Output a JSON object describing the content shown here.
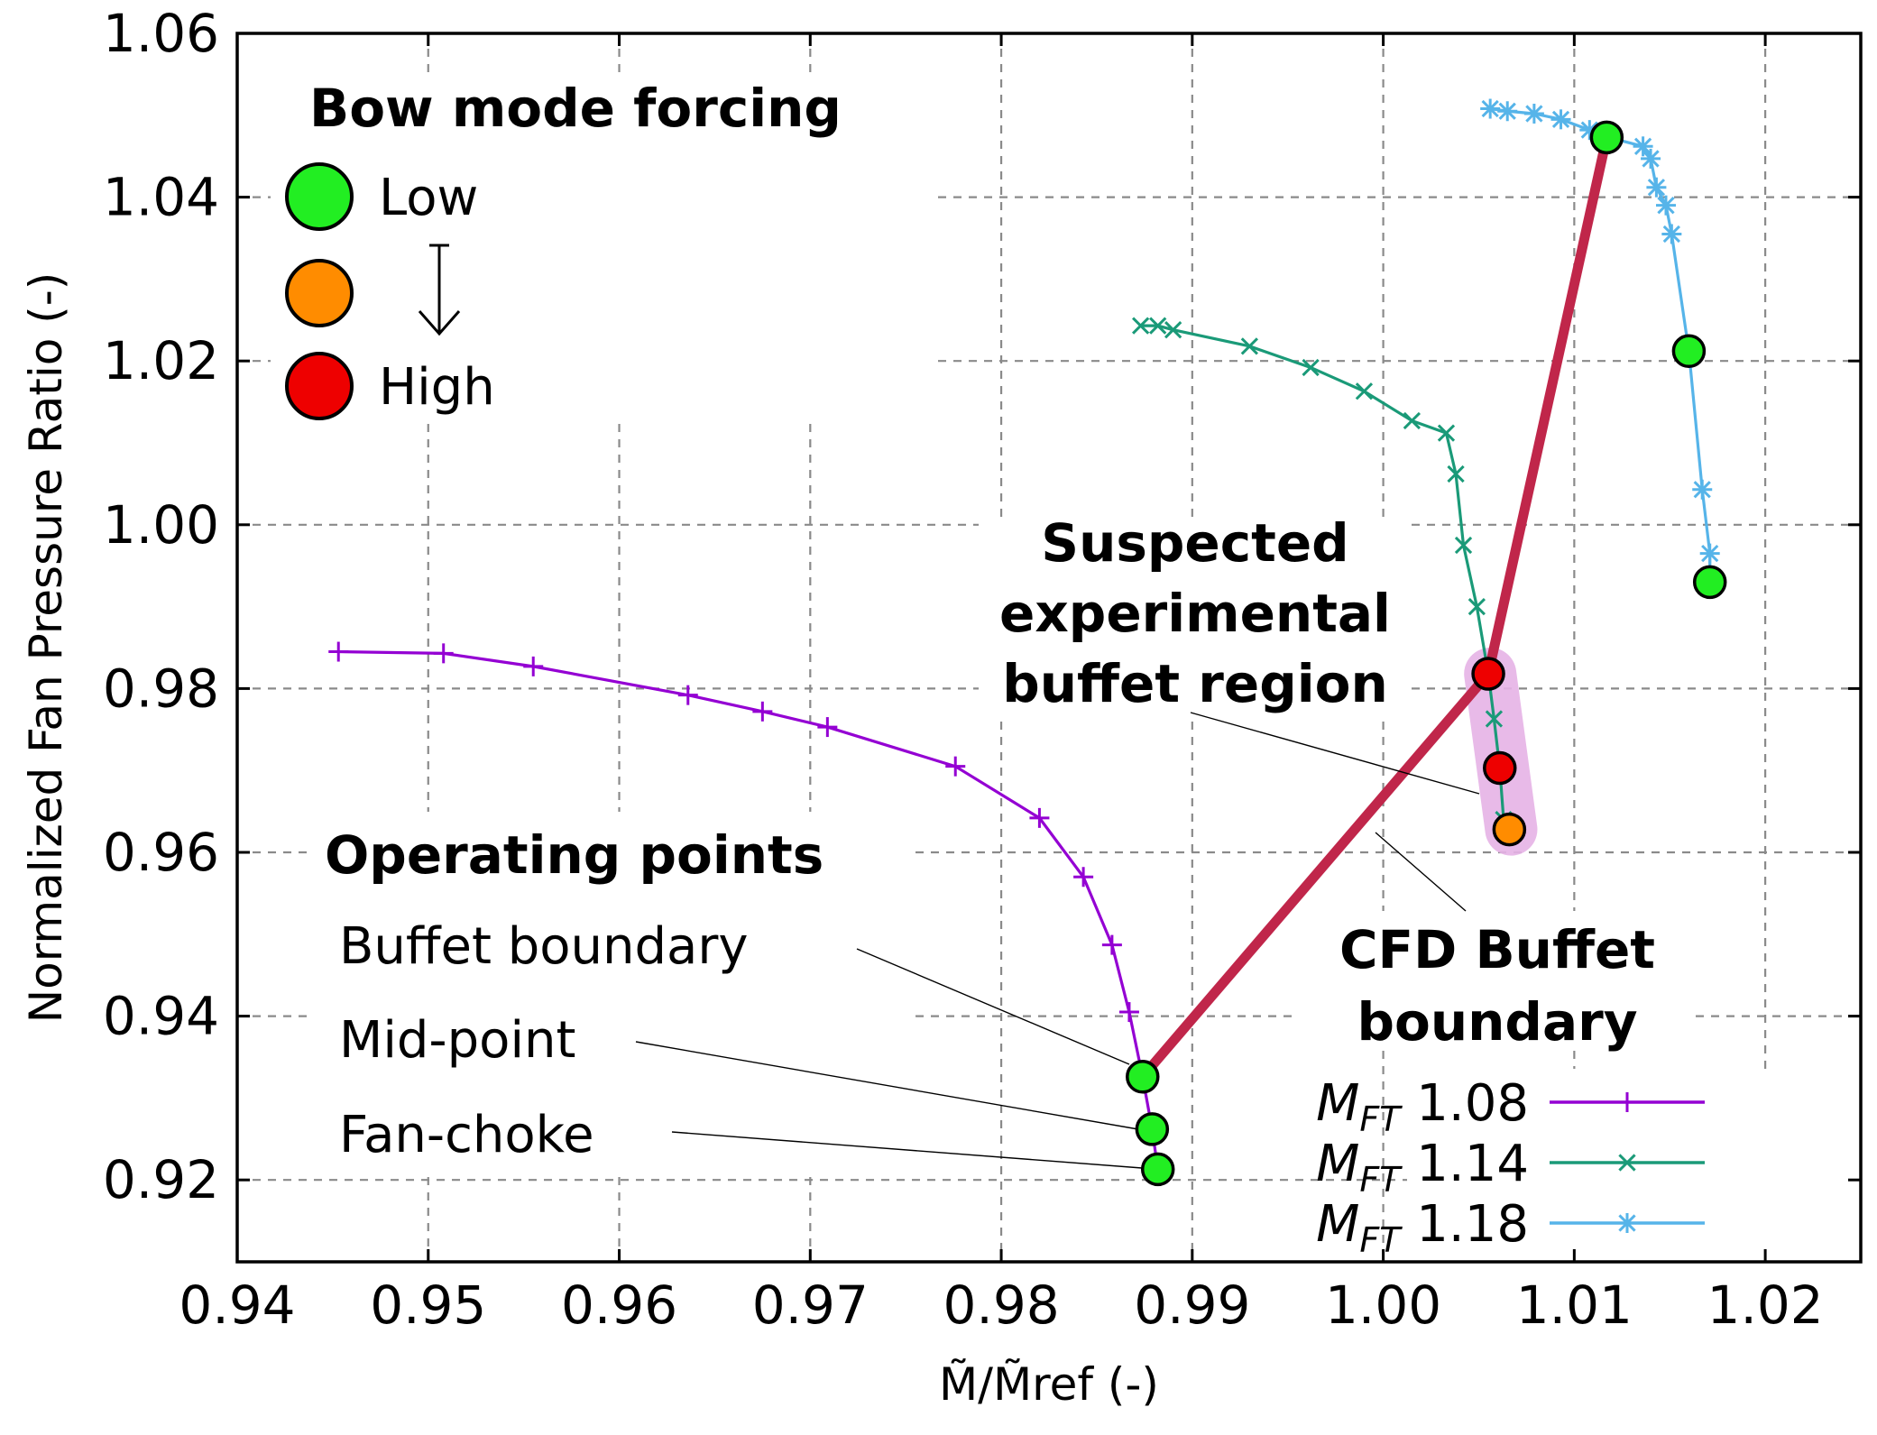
{
  "chart_data": {
    "type": "line",
    "xlabel": "M̃/M̃ref (-)",
    "ylabel": "Normalized Fan Pressure Ratio (-)",
    "xlim": [
      0.94,
      1.025
    ],
    "ylim": [
      0.91,
      1.06
    ],
    "x_ticks": [
      "0.94",
      "0.95",
      "0.96",
      "0.97",
      "0.98",
      "0.99",
      "1.00",
      "1.01",
      "1.02"
    ],
    "y_ticks": [
      "0.92",
      "0.94",
      "0.96",
      "0.98",
      "1.00",
      "1.02",
      "1.04",
      "1.06"
    ],
    "grid": true,
    "legend_position": "bottom-right",
    "series": [
      {
        "name": "MFT 1.08",
        "name_main": "M",
        "name_sub": "FT",
        "name_value": "1.08",
        "color": "#9400d3",
        "marker": "plus",
        "points": [
          [
            0.9453,
            0.9845
          ],
          [
            0.9508,
            0.9843
          ],
          [
            0.9555,
            0.9827
          ],
          [
            0.9636,
            0.9792
          ],
          [
            0.9675,
            0.9772
          ],
          [
            0.9709,
            0.9753
          ],
          [
            0.9776,
            0.9705
          ],
          [
            0.982,
            0.9642
          ],
          [
            0.9843,
            0.957
          ],
          [
            0.9858,
            0.9487
          ],
          [
            0.9867,
            0.9405
          ],
          [
            0.9874,
            0.9326
          ],
          [
            0.9879,
            0.9262
          ],
          [
            0.9882,
            0.9213
          ]
        ]
      },
      {
        "name": "MFT 1.14",
        "name_main": "M",
        "name_sub": "FT",
        "name_value": "1.14",
        "color": "#1a9a78",
        "marker": "cross",
        "points": [
          [
            0.9873,
            1.0243
          ],
          [
            0.9882,
            1.0243
          ],
          [
            0.989,
            1.0238
          ],
          [
            0.993,
            1.0218
          ],
          [
            0.9962,
            1.0192
          ],
          [
            0.999,
            1.0163
          ],
          [
            1.0015,
            1.0127
          ],
          [
            1.0033,
            1.0112
          ],
          [
            1.0038,
            1.0062
          ],
          [
            1.0042,
            0.9975
          ],
          [
            1.0049,
            0.99
          ],
          [
            1.0055,
            0.9818
          ],
          [
            1.0058,
            0.9763
          ],
          [
            1.0061,
            0.9703
          ],
          [
            1.0063,
            0.964
          ]
        ]
      },
      {
        "name": "MFT 1.18",
        "name_main": "M",
        "name_sub": "FT",
        "name_value": "1.18",
        "color": "#56b4e9",
        "marker": "star",
        "points": [
          [
            1.0056,
            1.0508
          ],
          [
            1.0065,
            1.0505
          ],
          [
            1.0079,
            1.0502
          ],
          [
            1.0093,
            1.0495
          ],
          [
            1.0108,
            1.0482
          ],
          [
            1.0118,
            1.0473
          ],
          [
            1.0136,
            1.0462
          ],
          [
            1.014,
            1.0447
          ],
          [
            1.0143,
            1.0412
          ],
          [
            1.0148,
            1.039
          ],
          [
            1.0151,
            1.0355
          ],
          [
            1.016,
            1.0212
          ],
          [
            1.0167,
            1.0043
          ],
          [
            1.0171,
            0.9965
          ],
          [
            1.0171,
            0.993
          ]
        ]
      }
    ],
    "operating_points": [
      {
        "x": 0.9874,
        "y": 0.9326,
        "forcing": "low"
      },
      {
        "x": 0.9879,
        "y": 0.9262,
        "forcing": "low"
      },
      {
        "x": 0.9882,
        "y": 0.9213,
        "forcing": "low"
      },
      {
        "x": 1.0055,
        "y": 0.9818,
        "forcing": "high"
      },
      {
        "x": 1.0061,
        "y": 0.9703,
        "forcing": "high"
      },
      {
        "x": 1.0066,
        "y": 0.9628,
        "forcing": "medium"
      },
      {
        "x": 1.0117,
        "y": 1.0473,
        "forcing": "low"
      },
      {
        "x": 1.016,
        "y": 1.0212,
        "forcing": "low"
      },
      {
        "x": 1.0171,
        "y": 0.993,
        "forcing": "low"
      }
    ],
    "cfd_buffet_boundary": {
      "color": "#c0264a",
      "points": [
        [
          0.9874,
          0.9326
        ],
        [
          1.0055,
          0.9818
        ],
        [
          1.0117,
          1.0473
        ]
      ]
    },
    "experimental_buffet_region": {
      "color": "#e6b3e6",
      "from": [
        1.0056,
        0.9818
      ],
      "to": [
        1.0067,
        0.9628
      ]
    },
    "forcing_colors": {
      "low": "#22ee22",
      "medium": "#ff8c00",
      "high": "#ee0000"
    },
    "annotations": {
      "bow_mode_title": "Bow mode forcing",
      "low_label": "Low",
      "high_label": "High",
      "operating_points_title": "Operating points",
      "buffet_boundary_label": "Buffet boundary",
      "mid_point_label": "Mid-point",
      "fan_choke_label": "Fan-choke",
      "suspected_line1": "Suspected",
      "suspected_line2": "experimental",
      "suspected_line3": "buffet region",
      "cfd_line1": "CFD Buffet",
      "cfd_line2": "boundary"
    }
  }
}
